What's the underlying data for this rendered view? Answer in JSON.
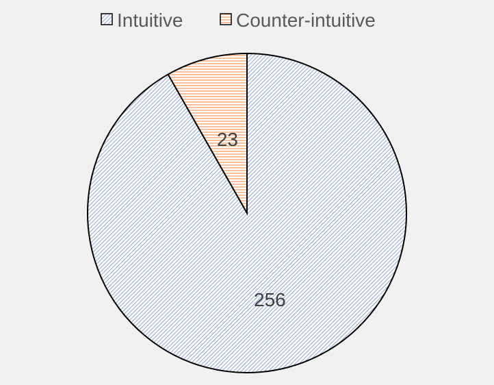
{
  "chart_data": {
    "type": "pie",
    "title": "",
    "categories": [
      "Intuitive",
      "Counter-intuitive"
    ],
    "values": [
      256,
      23
    ],
    "data_labels": [
      "256",
      "23"
    ],
    "legend": {
      "position": "top",
      "entries": [
        "Intuitive",
        "Counter-intuitive"
      ]
    },
    "start_angle": "12 o'clock",
    "direction": "clockwise",
    "colors": {
      "Intuitive": "#8fa6d9",
      "Counter-intuitive": "#f4b183",
      "slice_border": "#000000",
      "background": "#f0f0f0"
    }
  }
}
